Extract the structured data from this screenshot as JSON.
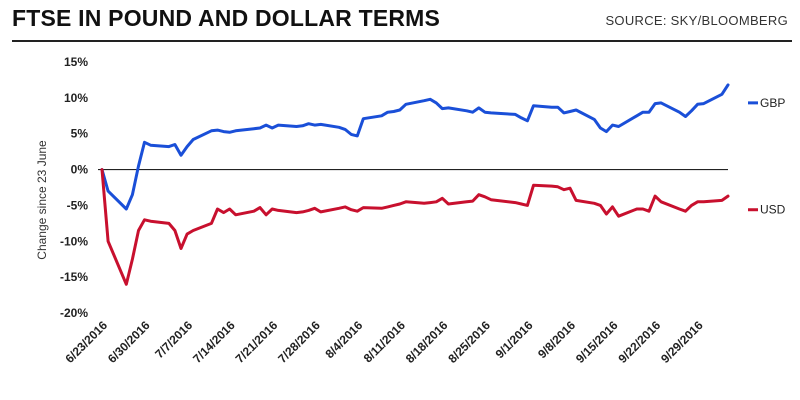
{
  "header": {
    "title": "FTSE IN POUND AND DOLLAR TERMS",
    "source": "SOURCE: SKY/BLOOMBERG"
  },
  "chart_data": {
    "type": "line",
    "title": "FTSE IN POUND AND DOLLAR TERMS",
    "ylabel": "Change since 23 June",
    "xlabel": "",
    "ylim": [
      -20,
      15
    ],
    "yticks": [
      15,
      10,
      5,
      0,
      -5,
      -10,
      -15,
      -20
    ],
    "ytick_labels": [
      "15%",
      "10%",
      "5%",
      "0%",
      "-5%",
      "-10%",
      "-15%",
      "-20%"
    ],
    "x_ticks": [
      "6/23/2016",
      "6/30/2016",
      "7/7/2016",
      "7/14/2016",
      "7/21/2016",
      "7/28/2016",
      "8/4/2016",
      "8/11/2016",
      "8/18/2016",
      "8/25/2016",
      "9/1/2016",
      "9/8/2016",
      "9/15/2016",
      "9/22/2016",
      "9/29/2016"
    ],
    "grid": false,
    "legend": "right",
    "series": [
      {
        "name": "GBP",
        "color": "#1a4fd8",
        "x": [
          "6/23/2016",
          "6/24/2016",
          "6/27/2016",
          "6/28/2016",
          "6/29/2016",
          "6/30/2016",
          "7/1/2016",
          "7/4/2016",
          "7/5/2016",
          "7/6/2016",
          "7/7/2016",
          "7/8/2016",
          "7/11/2016",
          "7/12/2016",
          "7/13/2016",
          "7/14/2016",
          "7/15/2016",
          "7/18/2016",
          "7/19/2016",
          "7/20/2016",
          "7/21/2016",
          "7/22/2016",
          "7/25/2016",
          "7/26/2016",
          "7/27/2016",
          "7/28/2016",
          "7/29/2016",
          "8/1/2016",
          "8/2/2016",
          "8/3/2016",
          "8/4/2016",
          "8/5/2016",
          "8/8/2016",
          "8/9/2016",
          "8/10/2016",
          "8/11/2016",
          "8/12/2016",
          "8/15/2016",
          "8/16/2016",
          "8/17/2016",
          "8/18/2016",
          "8/19/2016",
          "8/22/2016",
          "8/23/2016",
          "8/24/2016",
          "8/25/2016",
          "8/26/2016",
          "8/30/2016",
          "8/31/2016",
          "9/1/2016",
          "9/2/2016",
          "9/5/2016",
          "9/6/2016",
          "9/7/2016",
          "9/8/2016",
          "9/9/2016",
          "9/12/2016",
          "9/13/2016",
          "9/14/2016",
          "9/15/2016",
          "9/16/2016",
          "9/19/2016",
          "9/20/2016",
          "9/21/2016",
          "9/22/2016",
          "9/23/2016",
          "9/26/2016",
          "9/27/2016",
          "9/28/2016",
          "9/29/2016",
          "9/30/2016",
          "10/3/2016",
          "10/4/2016"
        ],
        "values": [
          0,
          -3.0,
          -5.5,
          -3.5,
          0.5,
          3.8,
          3.4,
          3.2,
          3.5,
          2.0,
          3.2,
          4.2,
          5.4,
          5.5,
          5.3,
          5.2,
          5.4,
          5.7,
          5.8,
          6.2,
          5.8,
          6.2,
          6.0,
          6.1,
          6.4,
          6.2,
          6.3,
          5.9,
          5.6,
          4.9,
          4.7,
          7.1,
          7.5,
          8.0,
          8.1,
          8.3,
          9.1,
          9.6,
          9.8,
          9.3,
          8.5,
          8.6,
          8.2,
          8.0,
          8.6,
          8.0,
          7.9,
          7.7,
          7.2,
          6.8,
          8.9,
          8.7,
          8.7,
          7.9,
          8.1,
          8.3,
          7.0,
          5.8,
          5.3,
          6.2,
          6.0,
          7.5,
          8.0,
          8.0,
          9.2,
          9.3,
          8.0,
          7.4,
          8.2,
          9.1,
          9.2,
          10.5,
          11.8
        ]
      },
      {
        "name": "USD",
        "color": "#c8102e",
        "x": [
          "6/23/2016",
          "6/24/2016",
          "6/27/2016",
          "6/28/2016",
          "6/29/2016",
          "6/30/2016",
          "7/1/2016",
          "7/4/2016",
          "7/5/2016",
          "7/6/2016",
          "7/7/2016",
          "7/8/2016",
          "7/11/2016",
          "7/12/2016",
          "7/13/2016",
          "7/14/2016",
          "7/15/2016",
          "7/18/2016",
          "7/19/2016",
          "7/20/2016",
          "7/21/2016",
          "7/22/2016",
          "7/25/2016",
          "7/26/2016",
          "7/27/2016",
          "7/28/2016",
          "7/29/2016",
          "8/1/2016",
          "8/2/2016",
          "8/3/2016",
          "8/4/2016",
          "8/5/2016",
          "8/8/2016",
          "8/9/2016",
          "8/10/2016",
          "8/11/2016",
          "8/12/2016",
          "8/15/2016",
          "8/16/2016",
          "8/17/2016",
          "8/18/2016",
          "8/19/2016",
          "8/22/2016",
          "8/23/2016",
          "8/24/2016",
          "8/25/2016",
          "8/26/2016",
          "8/30/2016",
          "8/31/2016",
          "9/1/2016",
          "9/2/2016",
          "9/5/2016",
          "9/6/2016",
          "9/7/2016",
          "9/8/2016",
          "9/9/2016",
          "9/12/2016",
          "9/13/2016",
          "9/14/2016",
          "9/15/2016",
          "9/16/2016",
          "9/19/2016",
          "9/20/2016",
          "9/21/2016",
          "9/22/2016",
          "9/23/2016",
          "9/26/2016",
          "9/27/2016",
          "9/28/2016",
          "9/29/2016",
          "9/30/2016",
          "10/3/2016",
          "10/4/2016"
        ],
        "values": [
          0,
          -10.0,
          -16.0,
          -12.5,
          -8.5,
          -7.0,
          -7.2,
          -7.5,
          -8.5,
          -11.0,
          -9.0,
          -8.5,
          -7.5,
          -5.5,
          -6.0,
          -5.5,
          -6.3,
          -5.8,
          -5.3,
          -6.3,
          -5.5,
          -5.7,
          -6.0,
          -5.9,
          -5.7,
          -5.4,
          -5.9,
          -5.4,
          -5.2,
          -5.6,
          -5.8,
          -5.3,
          -5.4,
          -5.2,
          -5.0,
          -4.8,
          -4.5,
          -4.7,
          -4.6,
          -4.5,
          -4.0,
          -4.8,
          -4.5,
          -4.4,
          -3.5,
          -3.8,
          -4.2,
          -4.6,
          -4.8,
          -5.0,
          -2.2,
          -2.3,
          -2.4,
          -2.8,
          -2.6,
          -4.3,
          -4.7,
          -5.0,
          -6.2,
          -5.2,
          -6.5,
          -5.5,
          -5.5,
          -5.8,
          -3.7,
          -4.5,
          -5.5,
          -5.8,
          -5.0,
          -4.5,
          -4.5,
          -4.3,
          -3.7
        ]
      }
    ]
  }
}
